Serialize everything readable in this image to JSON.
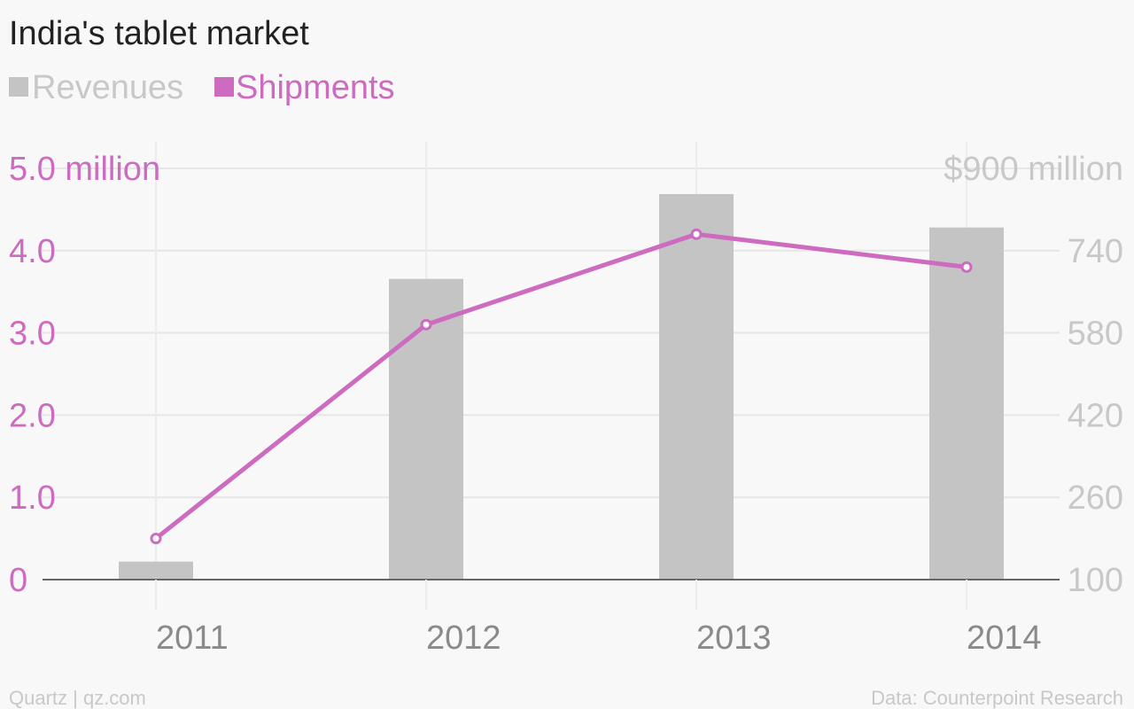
{
  "chart_data": {
    "type": "bar",
    "title": "India's tablet market",
    "categories": [
      "2011",
      "2012",
      "2013",
      "2014"
    ],
    "series": [
      {
        "name": "Revenues",
        "kind": "bar",
        "axis": "right",
        "color": "#c4c4c4",
        "values": [
          135,
          685,
          850,
          785
        ]
      },
      {
        "name": "Shipments",
        "kind": "line",
        "axis": "left",
        "color": "#cc6bbf",
        "values": [
          0.5,
          3.1,
          4.2,
          3.8
        ]
      }
    ],
    "y_left": {
      "ylim": [
        0,
        5
      ],
      "ticks": [
        "0",
        "1.0",
        "2.0",
        "3.0",
        "4.0",
        "5.0 million"
      ],
      "color": "#cc6bbf"
    },
    "y_right": {
      "ylim": [
        100,
        900
      ],
      "ticks": [
        "100",
        "260",
        "420",
        "580",
        "740",
        "$900 million"
      ],
      "color": "#c8c8c8"
    },
    "grid": true,
    "legend": "top-left",
    "footer_left": "Quartz | qz.com",
    "footer_right": "Data: Counterpoint Research"
  }
}
